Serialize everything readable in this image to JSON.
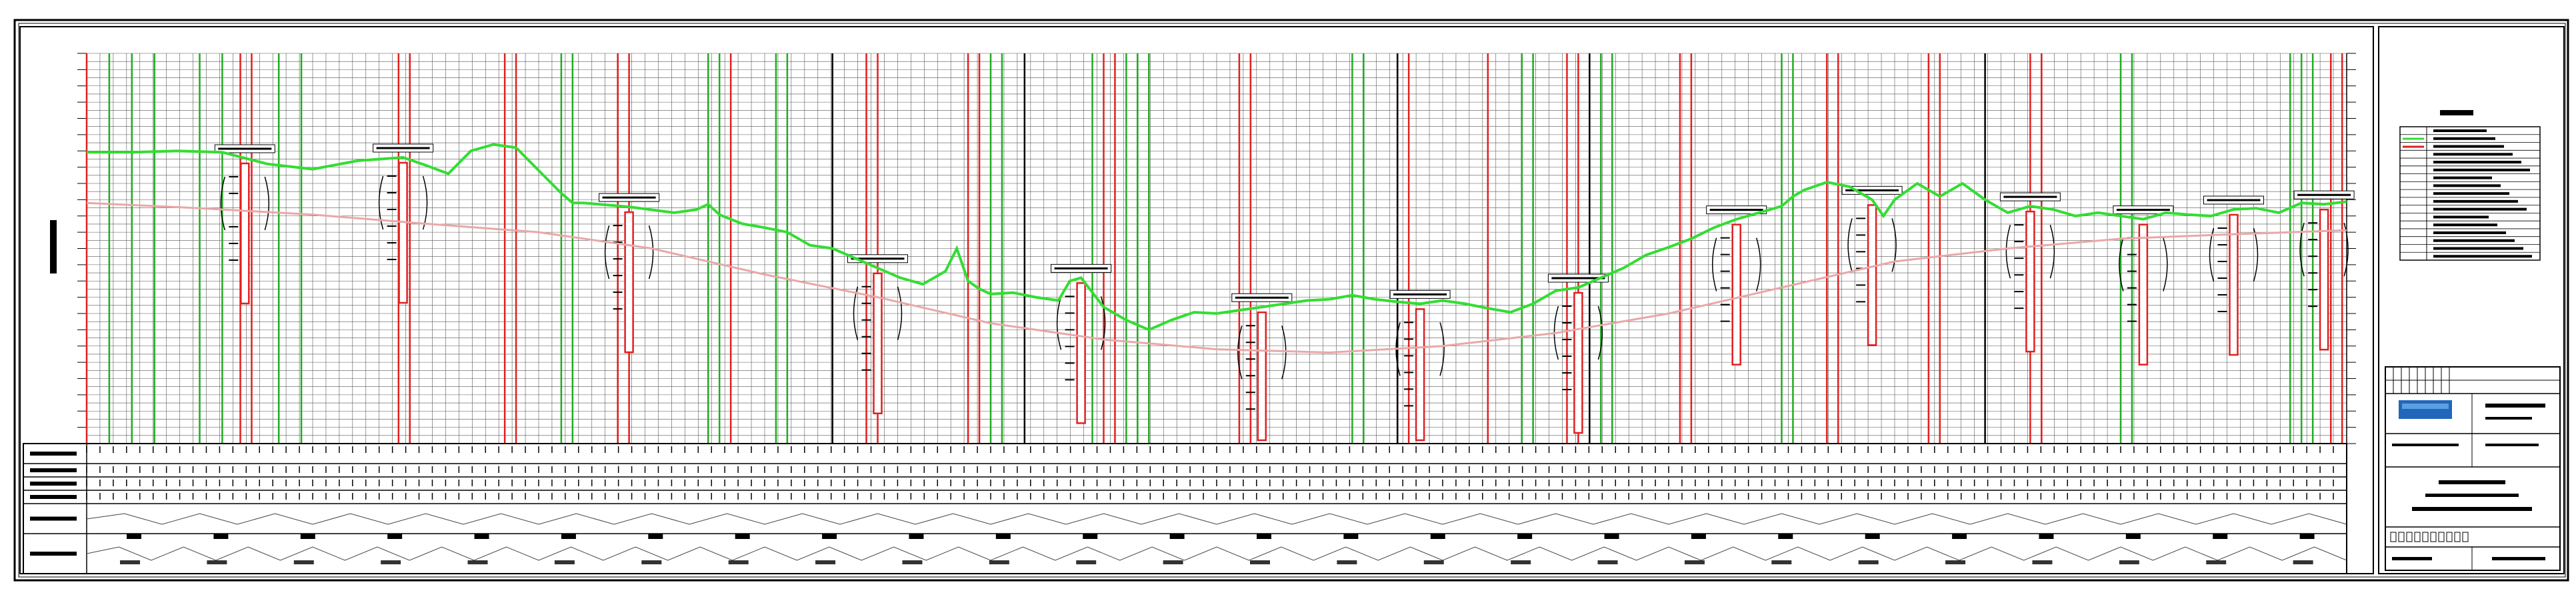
{
  "sheet": {
    "title": "",
    "accent_colors": {
      "ground_line": "#33dd33",
      "design_line": "#e8a8a8",
      "red_marker": "#e02020",
      "green_marker": "#22aa22",
      "grid": "#555555",
      "logo": "#2266bb"
    }
  },
  "profile": {
    "ground_profile": [
      [
        0,
        152
      ],
      [
        0.02,
        152
      ],
      [
        0.04,
        150
      ],
      [
        0.06,
        152
      ],
      [
        0.08,
        170
      ],
      [
        0.1,
        178
      ],
      [
        0.12,
        165
      ],
      [
        0.14,
        160
      ],
      [
        0.15,
        172
      ],
      [
        0.16,
        185
      ],
      [
        0.17,
        150
      ],
      [
        0.18,
        140
      ],
      [
        0.19,
        145
      ],
      [
        0.2,
        180
      ],
      [
        0.21,
        215
      ],
      [
        0.215,
        230
      ],
      [
        0.22,
        230
      ],
      [
        0.24,
        236
      ],
      [
        0.26,
        245
      ],
      [
        0.27,
        240
      ],
      [
        0.275,
        232
      ],
      [
        0.28,
        248
      ],
      [
        0.29,
        262
      ],
      [
        0.3,
        268
      ],
      [
        0.31,
        275
      ],
      [
        0.32,
        295
      ],
      [
        0.33,
        300
      ],
      [
        0.34,
        315
      ],
      [
        0.35,
        330
      ],
      [
        0.36,
        345
      ],
      [
        0.37,
        355
      ],
      [
        0.38,
        335
      ],
      [
        0.385,
        300
      ],
      [
        0.39,
        350
      ],
      [
        0.395,
        362
      ],
      [
        0.4,
        370
      ],
      [
        0.41,
        368
      ],
      [
        0.42,
        375
      ],
      [
        0.43,
        380
      ],
      [
        0.435,
        350
      ],
      [
        0.44,
        345
      ],
      [
        0.45,
        390
      ],
      [
        0.46,
        410
      ],
      [
        0.47,
        425
      ],
      [
        0.48,
        410
      ],
      [
        0.49,
        398
      ],
      [
        0.5,
        400
      ],
      [
        0.51,
        395
      ],
      [
        0.52,
        390
      ],
      [
        0.53,
        385
      ],
      [
        0.54,
        380
      ],
      [
        0.55,
        378
      ],
      [
        0.56,
        372
      ],
      [
        0.57,
        378
      ],
      [
        0.58,
        382
      ],
      [
        0.59,
        385
      ],
      [
        0.6,
        380
      ],
      [
        0.61,
        385
      ],
      [
        0.62,
        392
      ],
      [
        0.63,
        398
      ],
      [
        0.64,
        385
      ],
      [
        0.65,
        365
      ],
      [
        0.66,
        360
      ],
      [
        0.67,
        345
      ],
      [
        0.68,
        330
      ],
      [
        0.69,
        310
      ],
      [
        0.7,
        298
      ],
      [
        0.71,
        285
      ],
      [
        0.72,
        268
      ],
      [
        0.73,
        255
      ],
      [
        0.74,
        245
      ],
      [
        0.75,
        235
      ],
      [
        0.755,
        220
      ],
      [
        0.76,
        210
      ],
      [
        0.77,
        198
      ],
      [
        0.78,
        205
      ],
      [
        0.79,
        225
      ],
      [
        0.795,
        250
      ],
      [
        0.8,
        225
      ],
      [
        0.81,
        200
      ],
      [
        0.82,
        220
      ],
      [
        0.83,
        200
      ],
      [
        0.84,
        225
      ],
      [
        0.85,
        245
      ],
      [
        0.86,
        235
      ],
      [
        0.87,
        240
      ],
      [
        0.88,
        250
      ],
      [
        0.89,
        245
      ],
      [
        0.9,
        250
      ],
      [
        0.91,
        255
      ],
      [
        0.92,
        245
      ],
      [
        0.93,
        248
      ],
      [
        0.94,
        250
      ],
      [
        0.95,
        240
      ],
      [
        0.96,
        238
      ],
      [
        0.97,
        245
      ],
      [
        0.98,
        230
      ],
      [
        0.99,
        232
      ],
      [
        1,
        228
      ]
    ],
    "design_profile": [
      [
        0,
        230
      ],
      [
        0.05,
        238
      ],
      [
        0.1,
        248
      ],
      [
        0.15,
        262
      ],
      [
        0.2,
        275
      ],
      [
        0.25,
        300
      ],
      [
        0.3,
        340
      ],
      [
        0.35,
        375
      ],
      [
        0.4,
        415
      ],
      [
        0.45,
        440
      ],
      [
        0.5,
        455
      ],
      [
        0.55,
        460
      ],
      [
        0.6,
        450
      ],
      [
        0.65,
        430
      ],
      [
        0.7,
        400
      ],
      [
        0.75,
        360
      ],
      [
        0.8,
        320
      ],
      [
        0.85,
        300
      ],
      [
        0.9,
        285
      ],
      [
        0.95,
        278
      ],
      [
        1,
        272
      ]
    ],
    "red_markers": [
      0.0,
      0.068,
      0.073,
      0.138,
      0.143,
      0.185,
      0.19,
      0.235,
      0.24,
      0.285,
      0.345,
      0.35,
      0.39,
      0.395,
      0.45,
      0.455,
      0.51,
      0.515,
      0.58,
      0.585,
      0.62,
      0.655,
      0.66,
      0.705,
      0.71,
      0.77,
      0.775,
      0.815,
      0.82,
      0.86,
      0.865,
      0.993,
      0.998
    ],
    "green_markers": [
      0.01,
      0.02,
      0.03,
      0.05,
      0.06,
      0.085,
      0.095,
      0.21,
      0.215,
      0.275,
      0.28,
      0.305,
      0.31,
      0.4,
      0.405,
      0.445,
      0.46,
      0.465,
      0.47,
      0.56,
      0.565,
      0.635,
      0.64,
      0.67,
      0.675,
      0.75,
      0.755,
      0.9,
      0.905,
      0.975,
      0.98,
      0.985
    ],
    "black_markers": [
      0.33,
      0.415,
      0.58,
      0.665,
      0.84
    ],
    "boreholes": [
      0.07,
      0.14,
      0.24,
      0.35,
      0.44,
      0.52,
      0.59,
      0.66,
      0.73,
      0.79,
      0.86,
      0.91,
      0.95,
      0.99
    ]
  },
  "legend": {
    "rows": 17
  },
  "title_block": {
    "rows": 6
  }
}
